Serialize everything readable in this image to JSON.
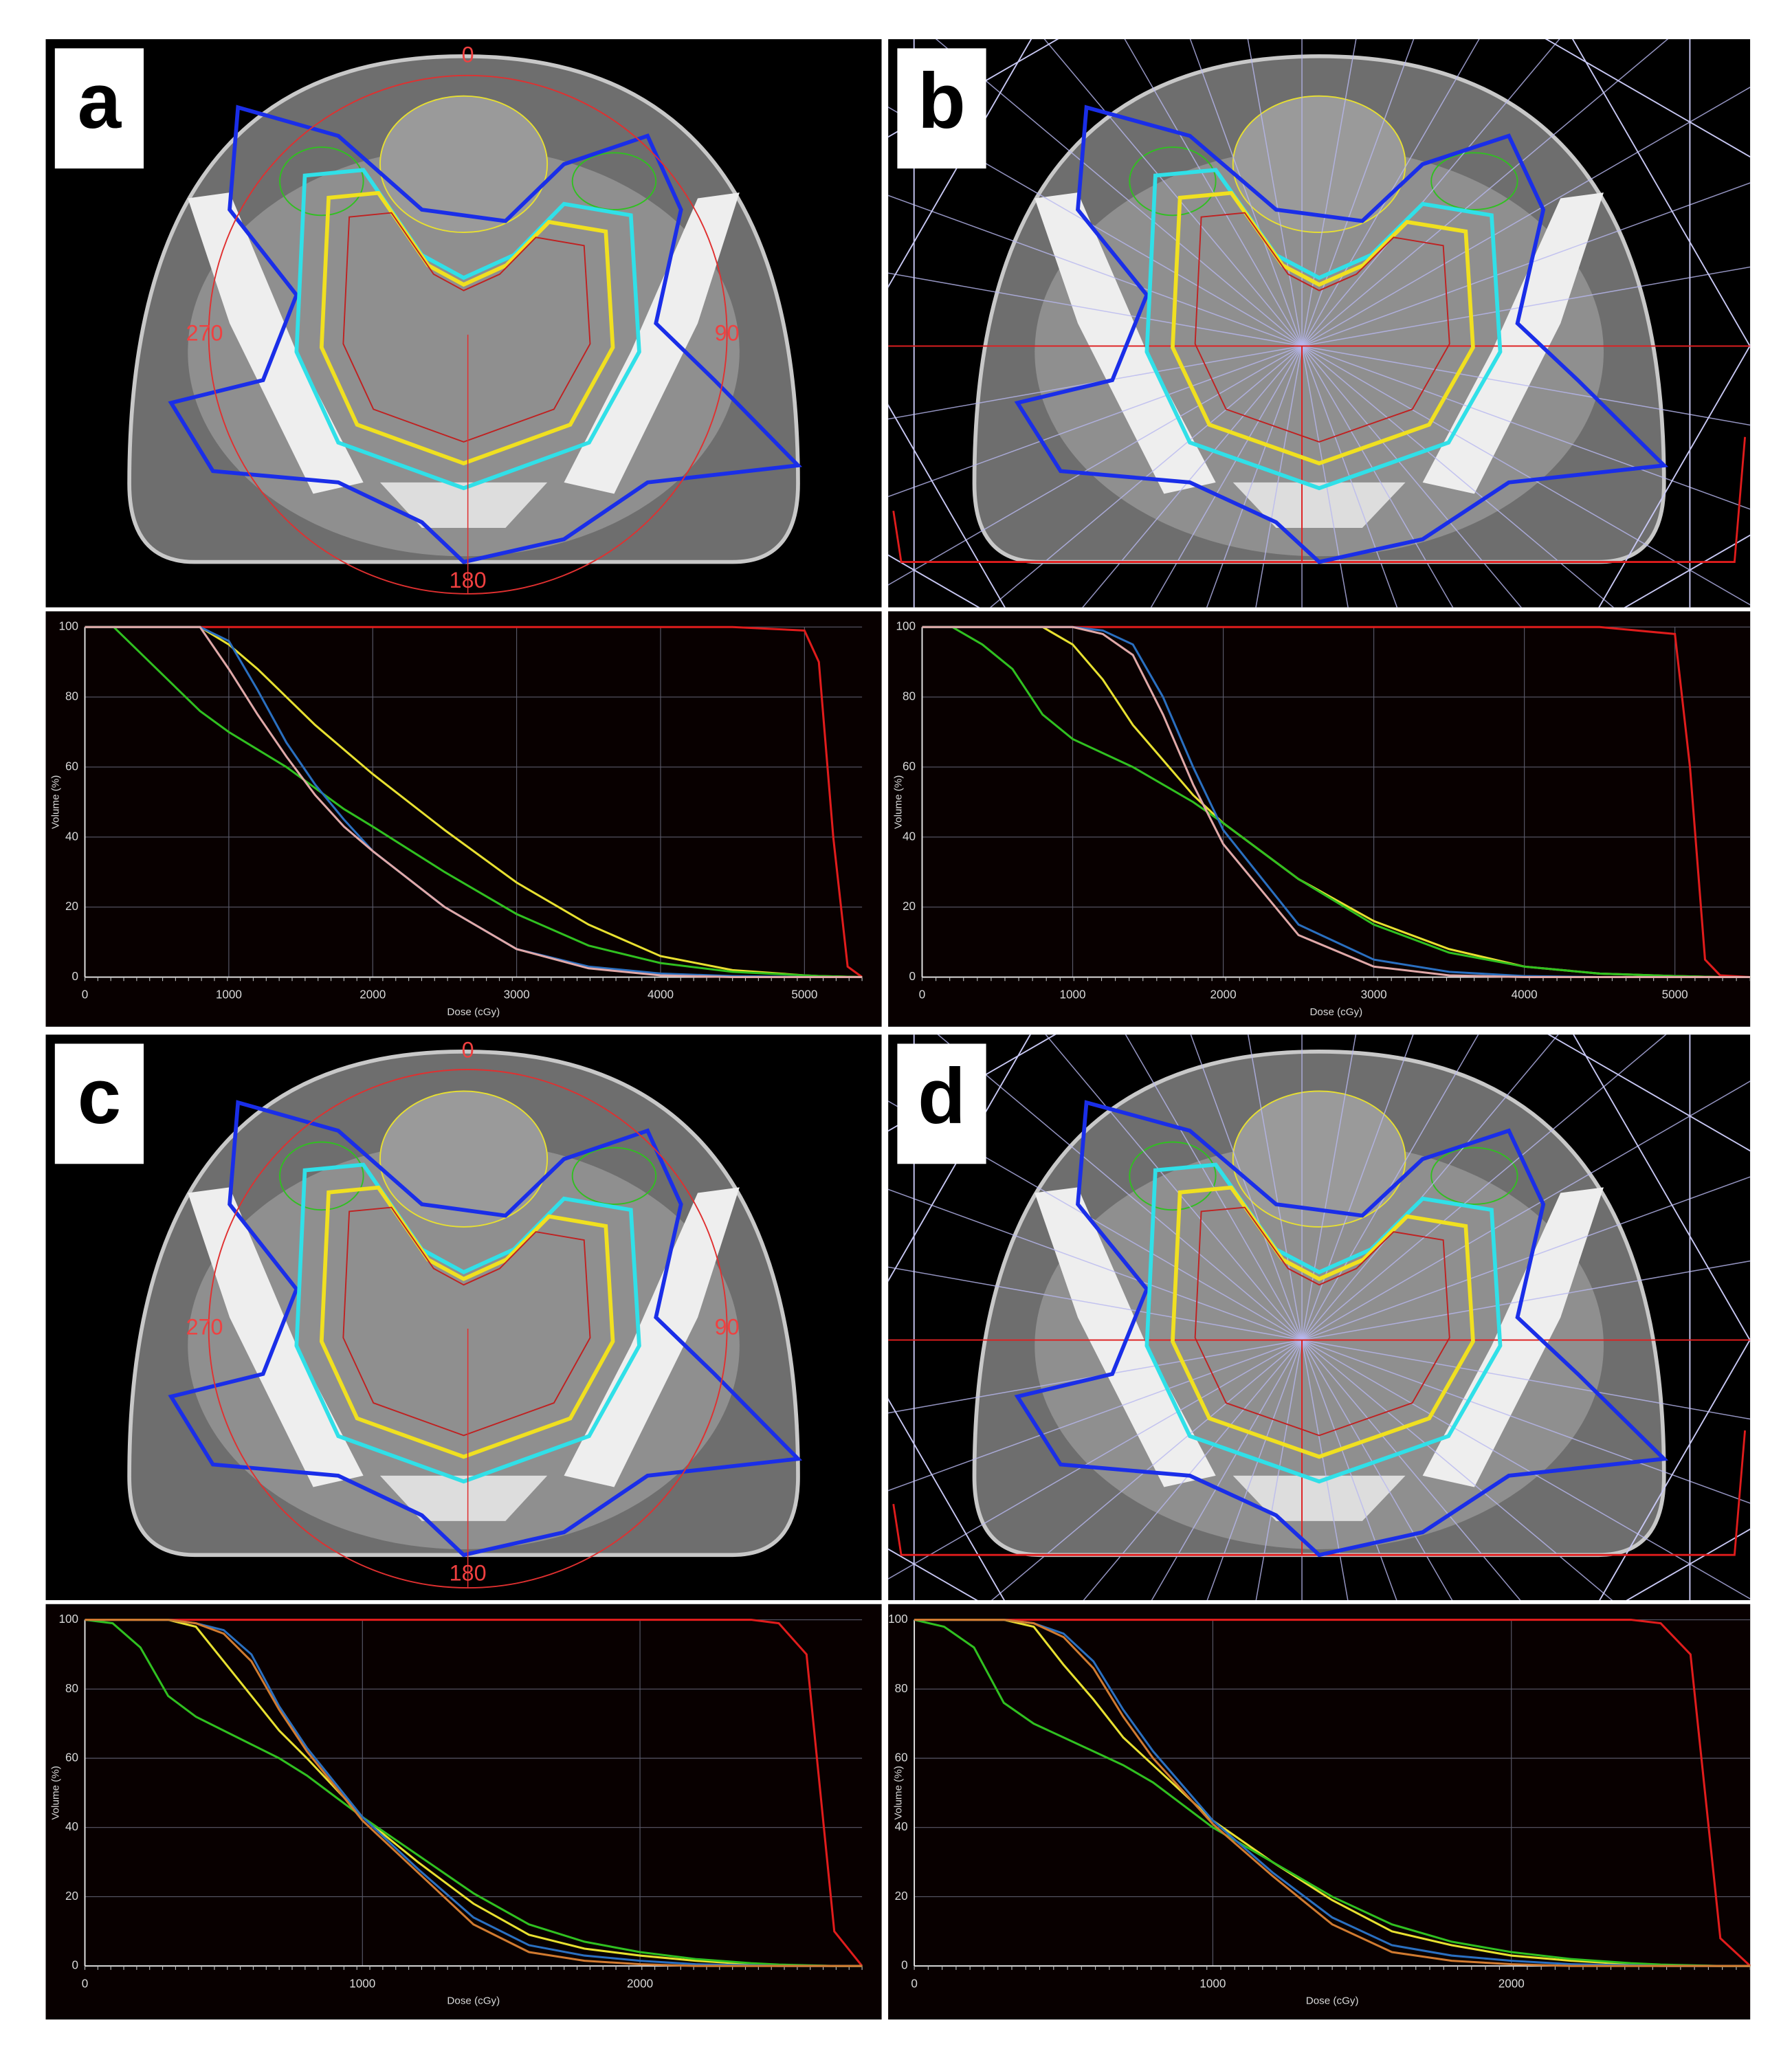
{
  "panels": [
    {
      "label": "a",
      "angles": [
        "0",
        "90",
        "180",
        "270"
      ]
    },
    {
      "label": "b"
    },
    {
      "label": "c",
      "angles": [
        "0",
        "90",
        "180",
        "270"
      ]
    },
    {
      "label": "d"
    }
  ],
  "chart_data": [
    {
      "type": "line",
      "x_label": "Dose (cGy)",
      "y_label": "Volume (%)",
      "x": [
        0,
        200,
        400,
        600,
        800,
        1000,
        1200,
        1400,
        1600,
        1800,
        2000,
        2500,
        3000,
        3500,
        4000,
        4500,
        5000,
        5100,
        5200,
        5300,
        5400
      ],
      "series": [
        {
          "color": "#e01c1c",
          "values": [
            100,
            100,
            100,
            100,
            100,
            100,
            100,
            100,
            100,
            100,
            100,
            100,
            100,
            100,
            100,
            100,
            99,
            90,
            40,
            3,
            0
          ]
        },
        {
          "color": "#e8e030",
          "values": [
            100,
            100,
            100,
            100,
            100,
            95,
            88,
            80,
            72,
            65,
            58,
            42,
            27,
            15,
            6,
            2,
            0.5,
            0.3,
            0.2,
            0.1,
            0
          ]
        },
        {
          "color": "#30c020",
          "values": [
            100,
            100,
            92,
            84,
            76,
            70,
            65,
            60,
            54,
            48,
            43,
            30,
            18,
            9,
            4,
            1.5,
            0.5,
            0.3,
            0.2,
            0.1,
            0
          ]
        },
        {
          "color": "#2a6fc0",
          "values": [
            100,
            100,
            100,
            100,
            100,
            96,
            82,
            67,
            55,
            45,
            36,
            20,
            8,
            3,
            1,
            0.3,
            0,
            0,
            0,
            0,
            0
          ]
        },
        {
          "color": "#e0a8a8",
          "values": [
            100,
            100,
            100,
            100,
            100,
            88,
            75,
            63,
            52,
            43,
            36,
            20,
            8,
            2.5,
            0.5,
            0,
            0,
            0,
            0,
            0,
            0
          ]
        }
      ],
      "xlim": [
        0,
        5400
      ],
      "ylim": [
        0,
        100
      ],
      "xticks": [
        0,
        1000,
        2000,
        3000,
        4000,
        5000
      ],
      "yticks": [
        0,
        20,
        40,
        60,
        80,
        100
      ],
      "grid": true
    },
    {
      "type": "line",
      "x_label": "Dose (cGy)",
      "y_label": "Volume (%)",
      "x": [
        0,
        200,
        400,
        600,
        800,
        1000,
        1200,
        1400,
        1600,
        1800,
        2000,
        2500,
        3000,
        3500,
        4000,
        4500,
        5000,
        5100,
        5200,
        5300,
        5500
      ],
      "series": [
        {
          "color": "#e01c1c",
          "values": [
            100,
            100,
            100,
            100,
            100,
            100,
            100,
            100,
            100,
            100,
            100,
            100,
            100,
            100,
            100,
            100,
            98,
            60,
            5,
            0.5,
            0
          ]
        },
        {
          "color": "#e8e030",
          "values": [
            100,
            100,
            100,
            100,
            100,
            95,
            85,
            72,
            62,
            52,
            44,
            28,
            16,
            8,
            3,
            1,
            0.3,
            0.2,
            0.1,
            0,
            0
          ]
        },
        {
          "color": "#30c020",
          "values": [
            100,
            100,
            95,
            88,
            75,
            68,
            64,
            60,
            55,
            50,
            44,
            28,
            15,
            7,
            3,
            1,
            0.3,
            0.2,
            0.1,
            0,
            0
          ]
        },
        {
          "color": "#2a6fc0",
          "values": [
            100,
            100,
            100,
            100,
            100,
            100,
            99,
            95,
            80,
            60,
            42,
            15,
            5,
            1.5,
            0.3,
            0,
            0,
            0,
            0,
            0,
            0
          ]
        },
        {
          "color": "#e0a8a8",
          "values": [
            100,
            100,
            100,
            100,
            100,
            100,
            98,
            92,
            75,
            55,
            38,
            12,
            3,
            0.5,
            0,
            0,
            0,
            0,
            0,
            0,
            0
          ]
        }
      ],
      "xlim": [
        0,
        5500
      ],
      "ylim": [
        0,
        100
      ],
      "xticks": [
        0,
        1000,
        2000,
        3000,
        4000,
        5000
      ],
      "yticks": [
        0,
        20,
        40,
        60,
        80,
        100
      ],
      "grid": true
    },
    {
      "type": "line",
      "x_label": "Dose (cGy)",
      "y_label": "Volume (%)",
      "x": [
        0,
        100,
        200,
        300,
        400,
        500,
        600,
        700,
        800,
        1000,
        1200,
        1400,
        1600,
        1800,
        2000,
        2200,
        2400,
        2500,
        2600,
        2700,
        2800
      ],
      "series": [
        {
          "color": "#e01c1c",
          "values": [
            100,
            100,
            100,
            100,
            100,
            100,
            100,
            100,
            100,
            100,
            100,
            100,
            100,
            100,
            100,
            100,
            100,
            99,
            90,
            10,
            0
          ]
        },
        {
          "color": "#e8e030",
          "values": [
            100,
            100,
            100,
            100,
            98,
            88,
            78,
            68,
            60,
            43,
            30,
            18,
            9,
            5,
            3,
            1.5,
            0.5,
            0.3,
            0.1,
            0,
            0
          ]
        },
        {
          "color": "#30c020",
          "values": [
            100,
            99,
            92,
            78,
            72,
            68,
            64,
            60,
            55,
            43,
            32,
            21,
            12,
            7,
            4,
            2,
            0.8,
            0.4,
            0.2,
            0,
            0
          ]
        },
        {
          "color": "#2a6fc0",
          "values": [
            100,
            100,
            100,
            100,
            99,
            97,
            90,
            75,
            63,
            43,
            28,
            14,
            6,
            3,
            1.5,
            0.5,
            0.2,
            0,
            0,
            0,
            0
          ]
        },
        {
          "color": "#d07a30",
          "values": [
            100,
            100,
            100,
            100,
            99,
            96,
            88,
            74,
            62,
            42,
            27,
            12,
            4,
            1.5,
            0.5,
            0,
            0,
            0,
            0,
            0,
            0
          ]
        }
      ],
      "xlim": [
        0,
        2800
      ],
      "ylim": [
        0,
        100
      ],
      "xticks": [
        0,
        1000,
        2000
      ],
      "yticks": [
        0,
        20,
        40,
        60,
        80,
        100
      ],
      "grid": true
    },
    {
      "type": "line",
      "x_label": "Dose (cGy)",
      "y_label": "Volume (%)",
      "x": [
        0,
        100,
        200,
        300,
        400,
        500,
        600,
        700,
        800,
        1000,
        1200,
        1400,
        1600,
        1800,
        2000,
        2200,
        2400,
        2500,
        2600,
        2700,
        2800
      ],
      "series": [
        {
          "color": "#e01c1c",
          "values": [
            100,
            100,
            100,
            100,
            100,
            100,
            100,
            100,
            100,
            100,
            100,
            100,
            100,
            100,
            100,
            100,
            100,
            99,
            90,
            8,
            0
          ]
        },
        {
          "color": "#e8e030",
          "values": [
            100,
            100,
            100,
            100,
            98,
            87,
            77,
            66,
            58,
            42,
            30,
            19,
            10,
            6,
            3,
            1.5,
            0.5,
            0.3,
            0.1,
            0,
            0
          ]
        },
        {
          "color": "#30c020",
          "values": [
            100,
            98,
            92,
            76,
            70,
            66,
            62,
            58,
            53,
            40,
            30,
            20,
            12,
            7,
            4,
            2,
            0.8,
            0.4,
            0.2,
            0,
            0
          ]
        },
        {
          "color": "#2a6fc0",
          "values": [
            100,
            100,
            100,
            100,
            99,
            96,
            88,
            74,
            62,
            42,
            27,
            14,
            6,
            3,
            1.5,
            0.5,
            0.2,
            0,
            0,
            0,
            0
          ]
        },
        {
          "color": "#d07a30",
          "values": [
            100,
            100,
            100,
            100,
            99,
            95,
            86,
            72,
            60,
            41,
            26,
            12,
            4,
            1.5,
            0.5,
            0,
            0,
            0,
            0,
            0,
            0
          ]
        }
      ],
      "xlim": [
        0,
        2800
      ],
      "ylim": [
        0,
        100
      ],
      "xticks": [
        0,
        1000,
        2000
      ],
      "yticks": [
        0,
        20,
        40,
        60,
        80,
        100
      ],
      "grid": true
    }
  ]
}
